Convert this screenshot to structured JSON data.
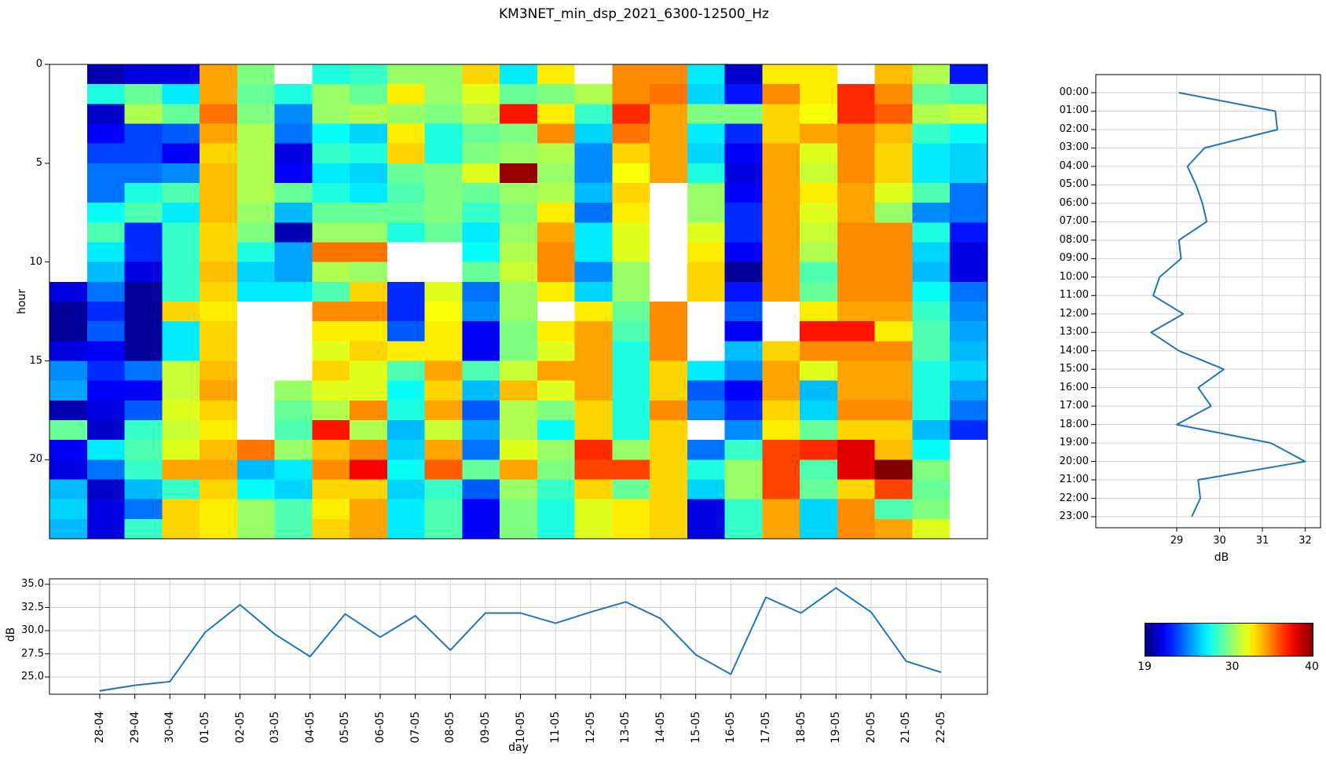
{
  "title": "KM3NET_min_dsp_2021_6300-12500_Hz",
  "colors": {
    "line": "#1f77b4",
    "grid": "#d3d3d3",
    "spine": "#000000",
    "nan": "#ffffff"
  },
  "chart_data": [
    {
      "type": "heatmap",
      "name": "day-hour-spectrogram",
      "ylabel": "hour",
      "yticks": [
        0,
        5,
        10,
        15,
        20
      ],
      "colormap": "jet",
      "vmin": 19,
      "vmax": 40,
      "x_categories": [
        "28-04",
        "29-04",
        "30-04",
        "01-05",
        "02-05",
        "03-05",
        "04-05",
        "05-05",
        "06-05",
        "07-05",
        "08-05",
        "09-05",
        "10-05",
        "11-05",
        "12-05",
        "13-05",
        "14-05",
        "15-05",
        "16-05",
        "17-05",
        "18-05",
        "19-05",
        "20-05",
        "21-05",
        "22-05"
      ],
      "grid": [
        [
          null,
          20,
          21,
          21,
          34,
          29.5,
          null,
          27.5,
          28,
          30,
          30,
          33,
          26.5,
          32.5,
          null,
          34.5,
          34.5,
          26.5,
          20.5,
          32.5,
          32.5,
          null,
          33.5,
          30.5,
          22
        ],
        [
          null,
          27.5,
          29,
          26.5,
          34,
          29,
          27.5,
          30,
          29,
          32.5,
          30,
          31.5,
          29,
          29.5,
          30.5,
          34.5,
          35,
          26,
          22,
          34.5,
          32.5,
          36.5,
          34.5,
          29,
          28.5
        ],
        [
          null,
          20.5,
          30.5,
          29,
          35,
          29.5,
          24.5,
          30,
          30.5,
          30,
          29.5,
          30.5,
          37,
          32.5,
          28,
          36.5,
          34,
          29.5,
          29.5,
          33,
          32,
          36.5,
          35.5,
          30.5,
          31
        ],
        [
          null,
          21.5,
          23,
          23.5,
          34,
          30.5,
          24,
          27,
          26,
          32.5,
          27.5,
          29,
          29.5,
          34.5,
          26,
          35,
          34,
          26.5,
          22.5,
          33,
          34,
          34.5,
          33.5,
          28,
          27
        ],
        [
          null,
          23,
          23,
          21.5,
          33,
          30.5,
          21,
          28,
          27.5,
          33,
          27.5,
          29.5,
          30,
          30.5,
          24.5,
          33,
          34,
          26,
          21.5,
          34,
          31.5,
          34.5,
          33,
          26.5,
          26
        ],
        [
          null,
          24,
          24,
          24.5,
          33.5,
          30.5,
          21.5,
          26.5,
          26,
          29,
          29.5,
          31.5,
          39.5,
          30,
          24.5,
          32,
          34,
          27.5,
          21,
          34,
          31,
          34.5,
          33,
          26.5,
          26
        ],
        [
          null,
          24,
          27.5,
          28.5,
          33.5,
          30.5,
          29,
          27.5,
          26.5,
          28.5,
          29.5,
          29,
          30,
          30.5,
          25.5,
          33,
          null,
          30,
          21.5,
          34,
          32.5,
          34,
          31.5,
          28.5,
          24
        ],
        [
          null,
          27,
          28.5,
          26.5,
          33.5,
          30,
          25.5,
          29,
          29,
          29,
          29.5,
          28,
          29.5,
          32.5,
          24,
          32.5,
          null,
          30,
          22.5,
          34,
          31.5,
          34,
          30,
          24.5,
          24
        ],
        [
          null,
          28.5,
          22.5,
          28,
          33,
          29.5,
          20,
          30,
          30,
          27.5,
          29,
          26.5,
          30,
          34,
          26.5,
          31.5,
          null,
          31.5,
          22.5,
          34,
          31,
          34.5,
          34.5,
          27.5,
          22
        ],
        [
          null,
          26.5,
          22.5,
          28,
          33,
          27.5,
          25,
          35,
          35,
          null,
          null,
          27,
          30.5,
          34.5,
          26.5,
          31.5,
          null,
          32.5,
          21.5,
          34,
          30.5,
          34.5,
          34.5,
          26,
          21
        ],
        [
          null,
          25.5,
          21,
          28,
          33.5,
          26,
          25,
          30.5,
          30,
          null,
          null,
          29,
          31,
          34.5,
          24.5,
          30,
          null,
          33,
          19.5,
          34,
          28.5,
          34.5,
          34.5,
          25.5,
          21
        ],
        [
          21,
          24,
          19.5,
          28,
          33,
          26.5,
          26.5,
          28.5,
          33,
          22.5,
          31.5,
          24,
          30,
          32.5,
          26,
          30,
          null,
          33,
          22,
          34,
          29,
          34.5,
          34.5,
          27,
          24
        ],
        [
          19.5,
          22.5,
          19.5,
          33,
          32.5,
          null,
          null,
          34.5,
          34.5,
          22.5,
          32,
          24.5,
          30,
          null,
          32.5,
          29,
          34.5,
          null,
          23.5,
          null,
          32.5,
          34,
          34,
          28,
          24.5
        ],
        [
          19.5,
          23.5,
          19.5,
          26.5,
          33,
          null,
          null,
          32.5,
          32.5,
          23.5,
          32.5,
          21.5,
          29.5,
          32.5,
          34,
          28.5,
          34.5,
          null,
          21.5,
          null,
          37,
          37,
          32.5,
          28.5,
          25
        ],
        [
          21,
          21.5,
          19.5,
          26.5,
          33,
          null,
          null,
          31.5,
          33,
          32.5,
          32.5,
          21.5,
          29.5,
          31.5,
          34,
          27.5,
          34.5,
          null,
          25.5,
          33,
          34.5,
          34.5,
          34.5,
          28.5,
          25.5
        ],
        [
          24.5,
          22.5,
          24,
          31,
          33.5,
          null,
          null,
          33,
          31.5,
          28.5,
          34,
          28.5,
          31,
          34,
          34,
          27.5,
          33,
          26.5,
          24.5,
          34,
          31.5,
          34,
          34,
          27.5,
          26
        ],
        [
          25,
          21.5,
          21.5,
          31,
          34,
          null,
          30,
          31.5,
          31.5,
          27,
          33,
          25.5,
          33.5,
          31.5,
          34,
          27.5,
          33,
          23.5,
          21.5,
          34,
          25.5,
          34,
          34,
          27.5,
          25
        ],
        [
          20,
          21,
          23.5,
          31.5,
          33,
          null,
          29,
          30.5,
          34.5,
          27.5,
          34,
          23.5,
          30.5,
          29.5,
          33,
          27.5,
          34.5,
          24.5,
          22.5,
          33,
          26,
          34.5,
          34.5,
          27.5,
          24
        ],
        [
          29,
          20.5,
          28,
          31,
          32.5,
          null,
          28.5,
          37,
          30.5,
          25.5,
          31,
          25,
          30.5,
          27,
          33,
          27.5,
          33,
          null,
          24.5,
          32.5,
          29,
          33,
          33,
          25.5,
          22.5
        ],
        [
          21.5,
          26.5,
          28.5,
          31.5,
          33.5,
          35,
          30,
          33.5,
          34.5,
          26,
          34,
          24,
          31.5,
          30,
          36.5,
          30,
          33,
          24,
          28,
          36,
          36.5,
          38,
          33.5,
          27,
          null
        ],
        [
          21,
          24,
          28,
          34,
          34,
          25.5,
          26.5,
          34.5,
          37.5,
          27,
          35.5,
          29,
          34,
          29.5,
          36,
          36,
          33,
          27.5,
          30,
          36,
          28.5,
          38,
          40,
          29.5,
          null
        ],
        [
          25.5,
          20.5,
          25.5,
          28,
          33,
          27,
          26,
          33,
          33,
          26,
          28,
          23.5,
          30,
          28,
          33,
          29,
          33,
          26,
          30,
          36,
          29,
          33,
          36,
          29,
          null
        ],
        [
          26,
          21,
          24,
          33,
          32.5,
          30,
          28.5,
          32.5,
          34,
          26.5,
          28.5,
          21.5,
          29.5,
          27.5,
          31.5,
          32.5,
          33,
          21,
          28,
          34,
          26,
          34.5,
          28.5,
          29.5,
          null
        ],
        [
          25.5,
          21,
          28,
          33,
          32.5,
          30,
          28.5,
          33,
          34,
          26.5,
          28.5,
          21.5,
          29.5,
          27.5,
          31.5,
          32.5,
          33,
          21,
          28,
          34,
          26,
          34.5,
          34,
          31.5,
          null
        ]
      ]
    },
    {
      "type": "line",
      "name": "hourly-mean-profile",
      "orientation": "vertical",
      "categories": [
        "00:00",
        "01:00",
        "02:00",
        "03:00",
        "04:00",
        "05:00",
        "06:00",
        "07:00",
        "08:00",
        "09:00",
        "10:00",
        "11:00",
        "12:00",
        "13:00",
        "14:00",
        "15:00",
        "16:00",
        "17:00",
        "18:00",
        "19:00",
        "20:00",
        "21:00",
        "22:00",
        "23:00"
      ],
      "values": [
        29.05,
        31.3,
        31.35,
        29.65,
        29.25,
        29.45,
        29.6,
        29.7,
        29.05,
        29.1,
        28.6,
        28.45,
        29.15,
        28.4,
        29.05,
        30.1,
        29.5,
        29.8,
        29.0,
        31.2,
        32.0,
        29.5,
        29.55,
        29.35
      ],
      "xlabel": "dB",
      "xticks": [
        29,
        30,
        31,
        32
      ],
      "xlim": [
        27.1,
        32.35
      ],
      "grid": true
    },
    {
      "type": "line",
      "name": "daily-mean-series",
      "orientation": "horizontal",
      "categories": [
        "28-04",
        "29-04",
        "30-04",
        "01-05",
        "02-05",
        "03-05",
        "04-05",
        "05-05",
        "06-05",
        "07-05",
        "08-05",
        "09-05",
        "10-05",
        "11-05",
        "12-05",
        "13-05",
        "14-05",
        "15-05",
        "16-05",
        "17-05",
        "18-05",
        "19-05",
        "20-05",
        "21-05",
        "22-05"
      ],
      "values": [
        23.5,
        24.1,
        24.5,
        29.8,
        32.8,
        29.6,
        27.2,
        31.8,
        29.3,
        31.6,
        27.9,
        31.9,
        31.9,
        30.8,
        32.0,
        33.1,
        31.3,
        27.4,
        25.3,
        33.6,
        31.9,
        34.6,
        32.0,
        26.7,
        25.5
      ],
      "ylabel": "dB",
      "xlabel": "day",
      "yticks": [
        35.0,
        32.5,
        30.0,
        27.5,
        25.0
      ],
      "ytick_labels": [
        "35.0",
        "32.5",
        "30.0",
        "27.5",
        "25.0"
      ],
      "ylim": [
        23.1,
        35.6
      ],
      "grid": true
    },
    {
      "type": "colorbar",
      "name": "db-colorbar",
      "colormap": "jet",
      "vmin": 19,
      "vmax": 40,
      "ticks": [
        19,
        30,
        40
      ]
    }
  ]
}
